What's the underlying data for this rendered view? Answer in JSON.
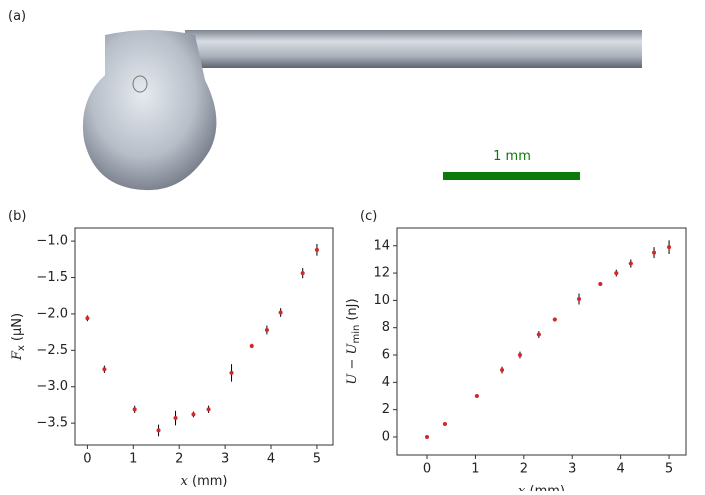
{
  "panel_labels": [
    "(a)",
    "(b)",
    "(c)"
  ],
  "scale_bar": "1 mm",
  "chart_data": [
    {
      "type": "scatter",
      "ylabel_parts": [
        "F",
        "x",
        "(μN)"
      ],
      "xlabel_parts": [
        "x",
        "(mm)"
      ],
      "x": [
        0,
        0.37,
        1.03,
        1.55,
        1.92,
        2.31,
        2.64,
        3.14,
        3.58,
        3.91,
        4.21,
        4.69,
        5.0
      ],
      "x_errors": [
        0.04,
        0.04,
        0.04,
        0.04,
        0.04,
        0.04,
        0.04,
        0.04,
        0.04,
        0.04,
        0.04,
        0.04,
        0.04
      ],
      "values": [
        -2.06,
        -2.76,
        -3.31,
        -3.6,
        -3.43,
        -3.38,
        -3.31,
        -2.81,
        -2.44,
        -2.22,
        -1.98,
        -1.44,
        -1.12
      ],
      "errors": [
        0.04,
        0.05,
        0.05,
        0.08,
        0.1,
        0.04,
        0.05,
        0.12,
        0.03,
        0.06,
        0.06,
        0.07,
        0.08
      ],
      "color": "#d62728",
      "error_color": "#000000",
      "xlim": [
        -0.27,
        5.35
      ],
      "ylim": [
        -3.8,
        -0.82
      ],
      "xticks": [
        0,
        1,
        2,
        3,
        4,
        5
      ],
      "yticks": [
        {
          "value": -1.0,
          "label": "−1.0"
        },
        {
          "value": -1.5,
          "label": "−1.5"
        },
        {
          "value": -2.0,
          "label": "−2.0"
        },
        {
          "value": -2.5,
          "label": "−2.5"
        },
        {
          "value": -3.0,
          "label": "−3.0"
        },
        {
          "value": -3.5,
          "label": "−3.5"
        }
      ]
    },
    {
      "type": "scatter",
      "ylabel_parts": [
        "U − U",
        "min",
        "(nJ)"
      ],
      "xlabel_parts": [
        "x",
        "(mm)"
      ],
      "x": [
        0,
        0.37,
        1.03,
        1.55,
        1.92,
        2.31,
        2.64,
        3.14,
        3.58,
        3.91,
        4.21,
        4.69,
        5.0
      ],
      "x_errors": [
        0.04,
        0.04,
        0.04,
        0.04,
        0.04,
        0.04,
        0.04,
        0.04,
        0.04,
        0.04,
        0.04,
        0.04,
        0.04
      ],
      "values": [
        0,
        0.95,
        3.0,
        4.9,
        6.0,
        7.5,
        8.6,
        10.1,
        11.2,
        12.0,
        12.7,
        13.5,
        13.9
      ],
      "errors": [
        0.05,
        0.1,
        0.1,
        0.25,
        0.25,
        0.25,
        0.15,
        0.4,
        0.15,
        0.25,
        0.3,
        0.4,
        0.5
      ],
      "color": "#d62728",
      "error_color": "#000000",
      "xlim": [
        -0.62,
        5.35
      ],
      "ylim": [
        -1.32,
        15.3
      ],
      "xticks": [
        0,
        1,
        2,
        3,
        4,
        5
      ],
      "yticks": [
        0,
        2,
        4,
        6,
        8,
        10,
        12,
        14
      ]
    }
  ]
}
